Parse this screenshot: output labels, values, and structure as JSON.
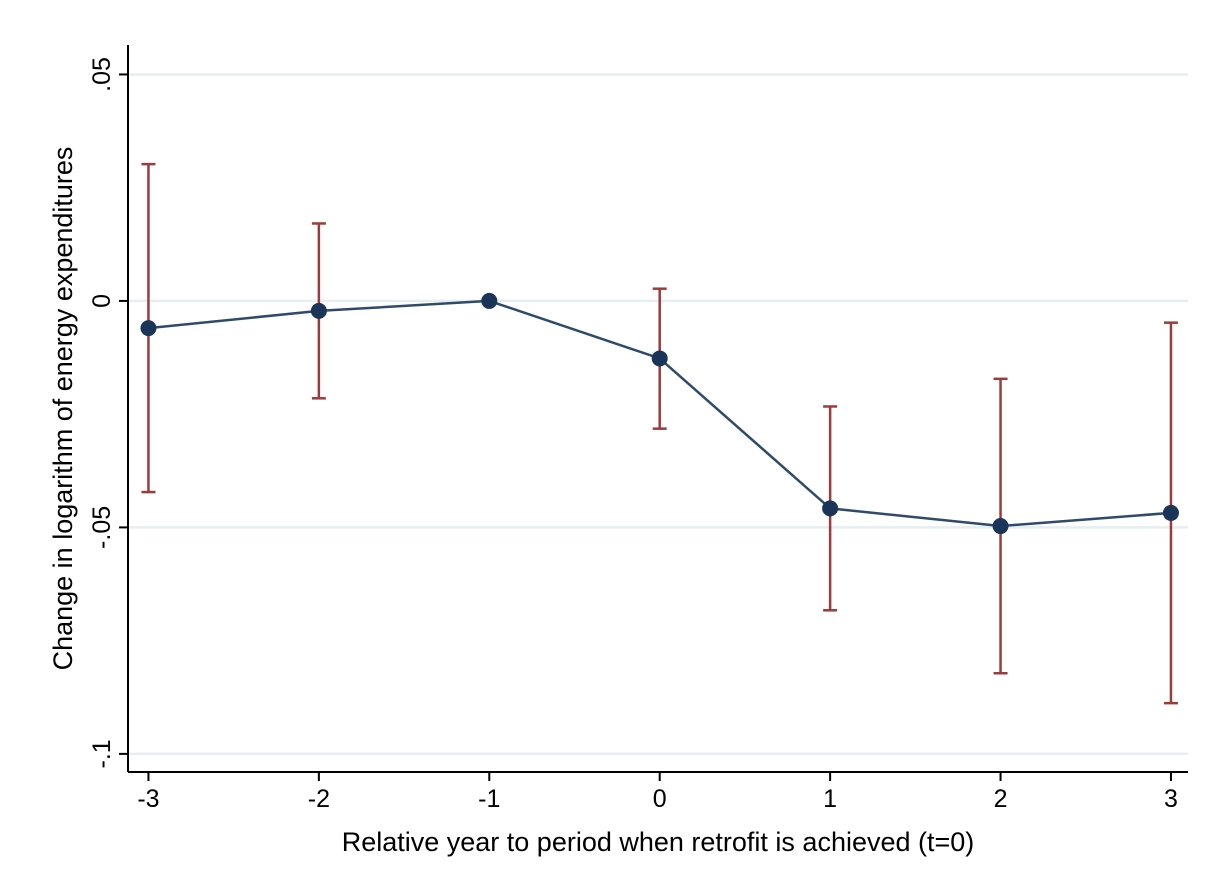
{
  "chart_data": {
    "type": "line",
    "xlabel": "Relative year to period when retrofit is achieved (t=0)",
    "ylabel": "Change in logarithm of energy expenditures",
    "x": [
      -3,
      -2,
      -1,
      0,
      1,
      2,
      3
    ],
    "y": [
      -0.006,
      -0.0022,
      0.0,
      -0.0127,
      -0.0458,
      -0.0497,
      -0.0468
    ],
    "ci_lower": [
      -0.0422,
      -0.0215,
      0.0,
      -0.0282,
      -0.0683,
      -0.0822,
      -0.0888
    ],
    "ci_upper": [
      0.0302,
      0.0171,
      0.0,
      0.0027,
      -0.0233,
      -0.0172,
      -0.0048
    ],
    "xlim": [
      -3.12,
      3.1
    ],
    "ylim": [
      -0.104,
      0.0565
    ],
    "x_ticks": [
      -3,
      -2,
      -1,
      0,
      1,
      2,
      3
    ],
    "x_tick_labels": [
      "-3",
      "-2",
      "-1",
      "0",
      "1",
      "2",
      "3"
    ],
    "y_ticks": [
      0.05,
      0,
      -0.05,
      -0.1
    ],
    "y_tick_labels": [
      ".05",
      "0",
      "-.05",
      "-.1"
    ],
    "grid": true,
    "legend": "none",
    "colors": {
      "line": "#2f4a6b",
      "marker": "#1b3559",
      "error_bar": "#9b3b3b",
      "grid": "#e6eef0",
      "axis": "#000000"
    }
  }
}
